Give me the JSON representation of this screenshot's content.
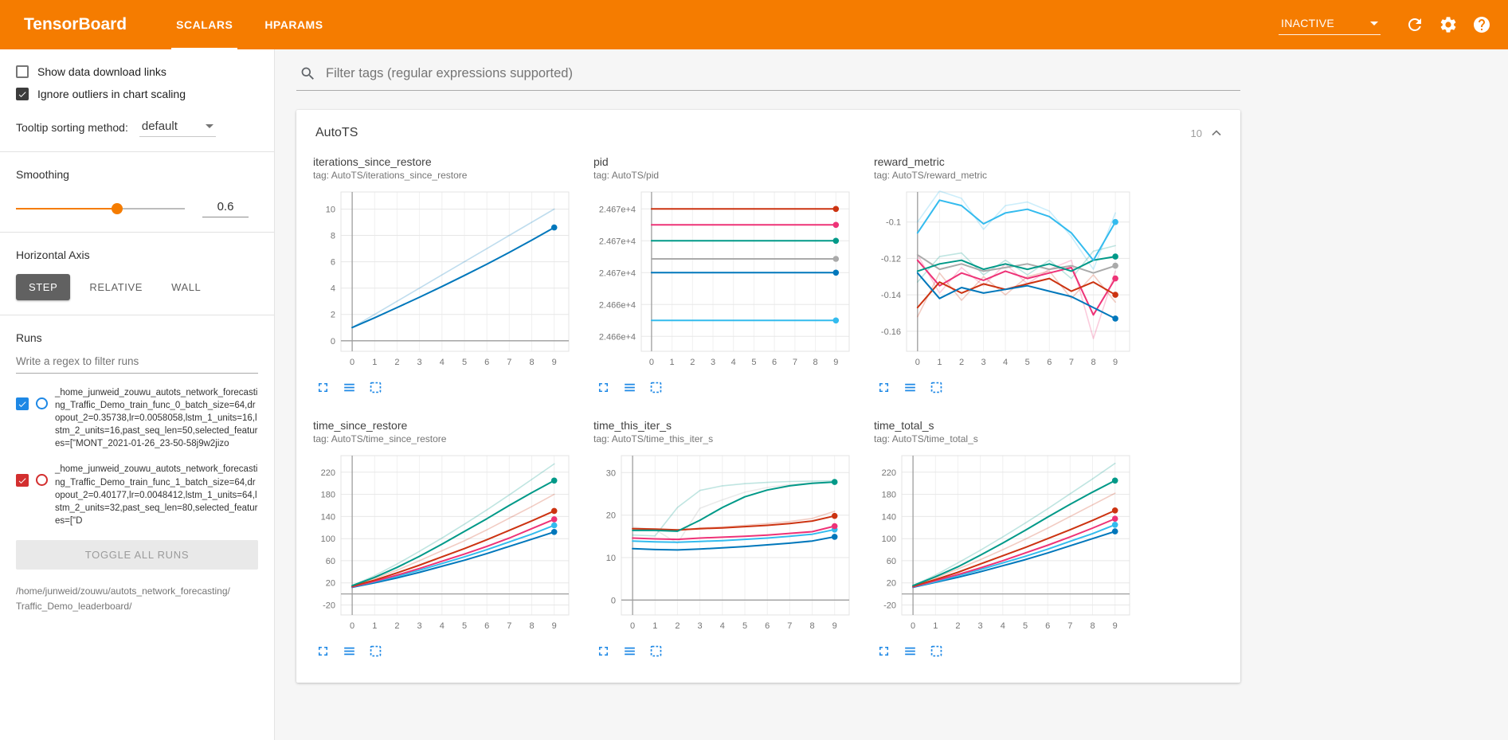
{
  "colors": {
    "brand_orange": "#f57c00",
    "accent_blue": "#1e88e5",
    "axis_gray": "#9e9e9e"
  },
  "topbar": {
    "title": "TensorBoard",
    "tabs": [
      {
        "label": "SCALARS",
        "active": true
      },
      {
        "label": "HPARAMS",
        "active": false
      }
    ],
    "status": "INACTIVE",
    "icons": [
      "refresh-icon",
      "settings-icon",
      "help-icon"
    ]
  },
  "sidebar": {
    "checkboxes": [
      {
        "label": "Show data download links",
        "checked": false
      },
      {
        "label": "Ignore outliers in chart scaling",
        "checked": true
      }
    ],
    "tooltip_sorting": {
      "label": "Tooltip sorting method:",
      "value": "default"
    },
    "smoothing": {
      "label": "Smoothing",
      "value": "0.6",
      "percent": 60
    },
    "horizontal_axis": {
      "label": "Horizontal Axis",
      "options": [
        "STEP",
        "RELATIVE",
        "WALL"
      ],
      "selected": "STEP"
    },
    "runs": {
      "label": "Runs",
      "filter_placeholder": "Write a regex to filter runs",
      "items": [
        {
          "name": "_home_junweid_zouwu_autots_network_forecasting_Traffic_Demo_train_func_0_batch_size=64,dropout_2=0.35738,lr=0.0058058,lstm_1_units=16,lstm_2_units=16,past_seq_len=50,selected_features=[\"MONT_2021-01-26_23-50-58j9w2jizo",
          "checked": true,
          "color": "#1e88e5"
        },
        {
          "name": "_home_junweid_zouwu_autots_network_forecasting_Traffic_Demo_train_func_1_batch_size=64,dropout_2=0.40177,lr=0.0048412,lstm_1_units=64,lstm_2_units=32,past_seq_len=80,selected_features=[\"D",
          "checked": true,
          "color": "#d32f2f"
        }
      ],
      "toggle_all_label": "TOGGLE ALL RUNS",
      "log_dir": "/home/junweid/zouwu/autots_network_forecasting/Traffic_Demo_leaderboard/"
    }
  },
  "main": {
    "filter_placeholder": "Filter tags (regular expressions supported)",
    "card": {
      "title": "AutoTS",
      "count": "10"
    }
  },
  "chart_data": [
    {
      "type": "line",
      "title": "iterations_since_restore",
      "tag": "tag: AutoTS/iterations_since_restore",
      "x": [
        0,
        1,
        2,
        3,
        4,
        5,
        6,
        7,
        8,
        9
      ],
      "xlim": [
        -0.5,
        9.65
      ],
      "ylim": [
        -0.8,
        11.3
      ],
      "ytick_values": [
        0,
        2,
        4,
        6,
        8,
        10
      ],
      "ytick_labels": [
        "0",
        "2",
        "4",
        "6",
        "8",
        "10"
      ],
      "series": [
        {
          "name": "raw-blue",
          "color": "#0077bb",
          "faded": true,
          "dot": false,
          "values": [
            1,
            2,
            3,
            4,
            5,
            6,
            7,
            8,
            9,
            10
          ]
        },
        {
          "name": "smoothed-blue",
          "color": "#0077bb",
          "faded": false,
          "dot": true,
          "values": [
            1,
            1.75,
            2.52,
            3.31,
            4.12,
            4.96,
            5.82,
            6.71,
            7.64,
            8.6
          ]
        }
      ]
    },
    {
      "type": "line",
      "title": "pid",
      "tag": "tag: AutoTS/pid",
      "x": [
        0,
        1,
        2,
        3,
        4,
        5,
        6,
        7,
        8,
        9
      ],
      "xlim": [
        -0.5,
        9.65
      ],
      "ylim": [
        24659.6,
        24674.6
      ],
      "ytick_values": [
        24673,
        24670,
        24667,
        24664,
        24661
      ],
      "ytick_labels": [
        "2.467e+4",
        "2.467e+4",
        "2.467e+4",
        "2.466e+4",
        "2.466e+4"
      ],
      "series": [
        {
          "name": "red",
          "color": "#cc3311",
          "faded": false,
          "dot": true,
          "values": [
            24673,
            24673,
            24673,
            24673,
            24673,
            24673,
            24673,
            24673,
            24673,
            24673
          ]
        },
        {
          "name": "magenta",
          "color": "#ee3377",
          "faded": false,
          "dot": true,
          "values": [
            24671.5,
            24671.5,
            24671.5,
            24671.5,
            24671.5,
            24671.5,
            24671.5,
            24671.5,
            24671.5,
            24671.5
          ]
        },
        {
          "name": "teal",
          "color": "#009988",
          "faded": false,
          "dot": true,
          "values": [
            24670,
            24670,
            24670,
            24670,
            24670,
            24670,
            24670,
            24670,
            24670,
            24670
          ]
        },
        {
          "name": "grey",
          "color": "#aaaaaa",
          "faded": false,
          "dot": true,
          "values": [
            24668.3,
            24668.3,
            24668.3,
            24668.3,
            24668.3,
            24668.3,
            24668.3,
            24668.3,
            24668.3,
            24668.3
          ]
        },
        {
          "name": "blue",
          "color": "#0077bb",
          "faded": false,
          "dot": true,
          "values": [
            24667,
            24667,
            24667,
            24667,
            24667,
            24667,
            24667,
            24667,
            24667,
            24667
          ]
        },
        {
          "name": "cyan",
          "color": "#33bbee",
          "faded": false,
          "dot": true,
          "values": [
            24662.5,
            24662.5,
            24662.5,
            24662.5,
            24662.5,
            24662.5,
            24662.5,
            24662.5,
            24662.5,
            24662.5
          ]
        }
      ]
    },
    {
      "type": "line",
      "title": "reward_metric",
      "tag": "tag: AutoTS/reward_metric",
      "x": [
        0,
        1,
        2,
        3,
        4,
        5,
        6,
        7,
        8,
        9
      ],
      "xlim": [
        -0.5,
        9.65
      ],
      "ylim": [
        -0.171,
        -0.0835
      ],
      "ytick_values": [
        -0.1,
        -0.12,
        -0.14,
        -0.16
      ],
      "ytick_labels": [
        "-0.1",
        "-0.12",
        "-0.14",
        "-0.16"
      ],
      "series": [
        {
          "name": "raw-cyan",
          "color": "#33bbee",
          "faded": true,
          "dot": false,
          "values": [
            -0.1,
            -0.083,
            -0.087,
            -0.104,
            -0.091,
            -0.089,
            -0.094,
            -0.108,
            -0.126,
            -0.095
          ]
        },
        {
          "name": "raw-magenta",
          "color": "#ee3377",
          "faded": true,
          "dot": false,
          "values": [
            -0.118,
            -0.139,
            -0.125,
            -0.135,
            -0.123,
            -0.134,
            -0.126,
            -0.121,
            -0.164,
            -0.127
          ]
        },
        {
          "name": "raw-teal",
          "color": "#009988",
          "faded": true,
          "dot": false,
          "values": [
            -0.133,
            -0.119,
            -0.117,
            -0.129,
            -0.121,
            -0.129,
            -0.121,
            -0.131,
            -0.116,
            -0.113
          ]
        },
        {
          "name": "raw-red",
          "color": "#cc3311",
          "faded": true,
          "dot": false,
          "values": [
            -0.152,
            -0.128,
            -0.143,
            -0.13,
            -0.14,
            -0.13,
            -0.127,
            -0.142,
            -0.129,
            -0.144
          ]
        },
        {
          "name": "grey",
          "color": "#aaaaaa",
          "faded": false,
          "dot": true,
          "values": [
            -0.118,
            -0.126,
            -0.123,
            -0.127,
            -0.125,
            -0.123,
            -0.126,
            -0.124,
            -0.128,
            -0.124
          ]
        },
        {
          "name": "magenta",
          "color": "#ee3377",
          "faded": false,
          "dot": true,
          "values": [
            -0.121,
            -0.135,
            -0.128,
            -0.132,
            -0.127,
            -0.131,
            -0.128,
            -0.125,
            -0.151,
            -0.131
          ]
        },
        {
          "name": "red",
          "color": "#cc3311",
          "faded": false,
          "dot": true,
          "values": [
            -0.147,
            -0.133,
            -0.139,
            -0.134,
            -0.137,
            -0.134,
            -0.131,
            -0.138,
            -0.133,
            -0.14
          ]
        },
        {
          "name": "blue",
          "color": "#0077bb",
          "faded": false,
          "dot": true,
          "values": [
            -0.128,
            -0.142,
            -0.136,
            -0.139,
            -0.137,
            -0.135,
            -0.138,
            -0.141,
            -0.147,
            -0.153
          ]
        },
        {
          "name": "teal",
          "color": "#009988",
          "faded": false,
          "dot": true,
          "values": [
            -0.127,
            -0.123,
            -0.121,
            -0.126,
            -0.123,
            -0.126,
            -0.123,
            -0.127,
            -0.121,
            -0.119
          ]
        },
        {
          "name": "cyan",
          "color": "#33bbee",
          "faded": false,
          "dot": true,
          "values": [
            -0.106,
            -0.088,
            -0.091,
            -0.101,
            -0.095,
            -0.093,
            -0.097,
            -0.106,
            -0.121,
            -0.1
          ]
        }
      ]
    },
    {
      "type": "line",
      "title": "time_since_restore",
      "tag": "tag: AutoTS/time_since_restore",
      "x": [
        0,
        1,
        2,
        3,
        4,
        5,
        6,
        7,
        8,
        9
      ],
      "xlim": [
        -0.5,
        9.65
      ],
      "ylim": [
        -38,
        250
      ],
      "ytick_values": [
        -20,
        20,
        60,
        100,
        140,
        180,
        220
      ],
      "ytick_labels": [
        "-20",
        "20",
        "60",
        "100",
        "140",
        "180",
        "220"
      ],
      "series": [
        {
          "name": "raw-teal",
          "color": "#009988",
          "faded": true,
          "dot": false,
          "values": [
            15,
            33,
            54,
            77,
            101,
            126,
            152,
            179,
            207,
            235
          ]
        },
        {
          "name": "raw-red",
          "color": "#cc3311",
          "faded": true,
          "dot": false,
          "values": [
            14,
            28,
            43,
            60,
            78,
            96,
            116,
            137,
            158,
            180
          ]
        },
        {
          "name": "blue",
          "color": "#0077bb",
          "faded": false,
          "dot": true,
          "values": [
            12,
            20,
            29,
            39,
            50,
            61,
            73,
            86,
            99,
            112
          ]
        },
        {
          "name": "cyan",
          "color": "#33bbee",
          "faded": false,
          "dot": true,
          "values": [
            13,
            22,
            32,
            43,
            55,
            67,
            80,
            94,
            108,
            124
          ]
        },
        {
          "name": "magenta",
          "color": "#ee3377",
          "faded": false,
          "dot": true,
          "values": [
            13,
            23,
            34,
            46,
            59,
            72,
            86,
            101,
            118,
            135
          ]
        },
        {
          "name": "red",
          "color": "#cc3311",
          "faded": false,
          "dot": true,
          "values": [
            14,
            25,
            38,
            52,
            67,
            82,
            98,
            115,
            132,
            150
          ]
        },
        {
          "name": "teal",
          "color": "#009988",
          "faded": false,
          "dot": true,
          "values": [
            15,
            30,
            48,
            68,
            90,
            113,
            136,
            160,
            183,
            205
          ]
        }
      ]
    },
    {
      "type": "line",
      "title": "time_this_iter_s",
      "tag": "tag: AutoTS/time_this_iter_s",
      "x": [
        0,
        1,
        2,
        3,
        4,
        5,
        6,
        7,
        8,
        9
      ],
      "xlim": [
        -0.5,
        9.65
      ],
      "ylim": [
        -3.5,
        34
      ],
      "ytick_values": [
        0,
        10,
        20,
        30
      ],
      "ytick_labels": [
        "0",
        "10",
        "20",
        "30"
      ],
      "series": [
        {
          "name": "raw-grey",
          "color": "#aaaaaa",
          "faded": true,
          "dot": false,
          "values": [
            17.2,
            16.6,
            13.4,
            21.6,
            23.6,
            25.4,
            26.5,
            27.2,
            27.6,
            27.8
          ]
        },
        {
          "name": "raw-teal",
          "color": "#009988",
          "faded": true,
          "dot": false,
          "values": [
            15.3,
            15.1,
            21.8,
            25.8,
            26.9,
            27.4,
            27.7,
            27.9,
            28,
            28.1
          ]
        },
        {
          "name": "raw-red",
          "color": "#cc3311",
          "faded": true,
          "dot": false,
          "values": [
            16.9,
            16.6,
            16.3,
            17,
            17.2,
            17.6,
            18,
            18.5,
            19.2,
            20.9
          ]
        },
        {
          "name": "blue",
          "color": "#0077bb",
          "faded": false,
          "dot": true,
          "values": [
            12.1,
            11.9,
            11.8,
            12,
            12.3,
            12.6,
            13,
            13.4,
            13.9,
            14.9
          ]
        },
        {
          "name": "cyan",
          "color": "#33bbee",
          "faded": false,
          "dot": true,
          "values": [
            13.9,
            13.7,
            13.6,
            13.8,
            14,
            14.3,
            14.6,
            15,
            15.5,
            16.6
          ]
        },
        {
          "name": "magenta",
          "color": "#ee3377",
          "faded": false,
          "dot": true,
          "values": [
            14.6,
            14.4,
            14.3,
            14.6,
            14.8,
            15,
            15.3,
            15.7,
            16.1,
            17.4
          ]
        },
        {
          "name": "red",
          "color": "#cc3311",
          "faded": false,
          "dot": true,
          "values": [
            16.8,
            16.7,
            16.5,
            16.8,
            17,
            17.3,
            17.6,
            18,
            18.6,
            19.8
          ]
        },
        {
          "name": "teal",
          "color": "#009988",
          "faded": false,
          "dot": true,
          "values": [
            16.4,
            16.4,
            16.2,
            18.8,
            21.8,
            24.3,
            25.9,
            26.9,
            27.5,
            27.8
          ]
        }
      ]
    },
    {
      "type": "line",
      "title": "time_total_s",
      "tag": "tag: AutoTS/time_total_s",
      "x": [
        0,
        1,
        2,
        3,
        4,
        5,
        6,
        7,
        8,
        9
      ],
      "xlim": [
        -0.5,
        9.65
      ],
      "ylim": [
        -38,
        250
      ],
      "ytick_values": [
        -20,
        20,
        60,
        100,
        140,
        180,
        220
      ],
      "ytick_labels": [
        "-20",
        "20",
        "60",
        "100",
        "140",
        "180",
        "220"
      ],
      "series": [
        {
          "name": "raw-teal",
          "color": "#009988",
          "faded": true,
          "dot": false,
          "values": [
            15,
            34,
            56,
            79,
            103,
            128,
            154,
            181,
            208,
            236
          ]
        },
        {
          "name": "raw-red",
          "color": "#cc3311",
          "faded": true,
          "dot": false,
          "values": [
            14,
            29,
            45,
            62,
            80,
            99,
            119,
            140,
            161,
            182
          ]
        },
        {
          "name": "blue",
          "color": "#0077bb",
          "faded": false,
          "dot": true,
          "values": [
            12,
            21,
            30,
            40,
            51,
            62,
            74,
            87,
            100,
            113
          ]
        },
        {
          "name": "cyan",
          "color": "#33bbee",
          "faded": false,
          "dot": true,
          "values": [
            13,
            22,
            33,
            44,
            56,
            68,
            81,
            95,
            109,
            125
          ]
        },
        {
          "name": "magenta",
          "color": "#ee3377",
          "faded": false,
          "dot": true,
          "values": [
            13,
            24,
            35,
            47,
            60,
            74,
            88,
            103,
            119,
            136
          ]
        },
        {
          "name": "red",
          "color": "#cc3311",
          "faded": false,
          "dot": true,
          "values": [
            14,
            26,
            39,
            54,
            69,
            84,
            100,
            116,
            133,
            151
          ]
        },
        {
          "name": "teal",
          "color": "#009988",
          "faded": false,
          "dot": true,
          "values": [
            15,
            31,
            49,
            70,
            92,
            115,
            139,
            162,
            184,
            205
          ]
        }
      ]
    }
  ]
}
